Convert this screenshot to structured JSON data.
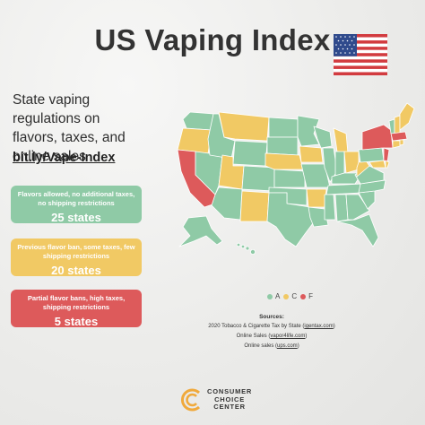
{
  "header": {
    "title": "US Vaping Index"
  },
  "intro": {
    "subtitle": "State vaping regulations on flavors, taxes, and online sales",
    "link": "bit.ly/Vape-Index"
  },
  "categories": [
    {
      "description": "Flavors allowed, no additional taxes, no shipping restrictions",
      "count": "25 states",
      "color": "#8fcaa6"
    },
    {
      "description": "Previous flavor ban, some taxes, few shipping restrictions",
      "count": "20 states",
      "color": "#f1c964"
    },
    {
      "description": "Partial flavor bans, high taxes, shipping restrictions",
      "count": "5 states",
      "color": "#dd5a5b"
    }
  ],
  "legend": [
    {
      "grade": "A",
      "color": "#8fcaa6"
    },
    {
      "grade": "C",
      "color": "#f1c964"
    },
    {
      "grade": "F",
      "color": "#dd5a5b"
    }
  ],
  "sources": {
    "heading": "Sources:",
    "line1_text": "2020 Tobacco & Cigarette Tax by State (",
    "line1_link": "igentax.com",
    "line2_text": "Online Sales (",
    "line2_link": "vapor4life.com",
    "line3_text": "Online sales (",
    "line3_link": "ups.com"
  },
  "footer": {
    "logo_line1": "CONSUMER",
    "logo_line2": "CHOICE",
    "logo_line3": "CENTER"
  }
}
